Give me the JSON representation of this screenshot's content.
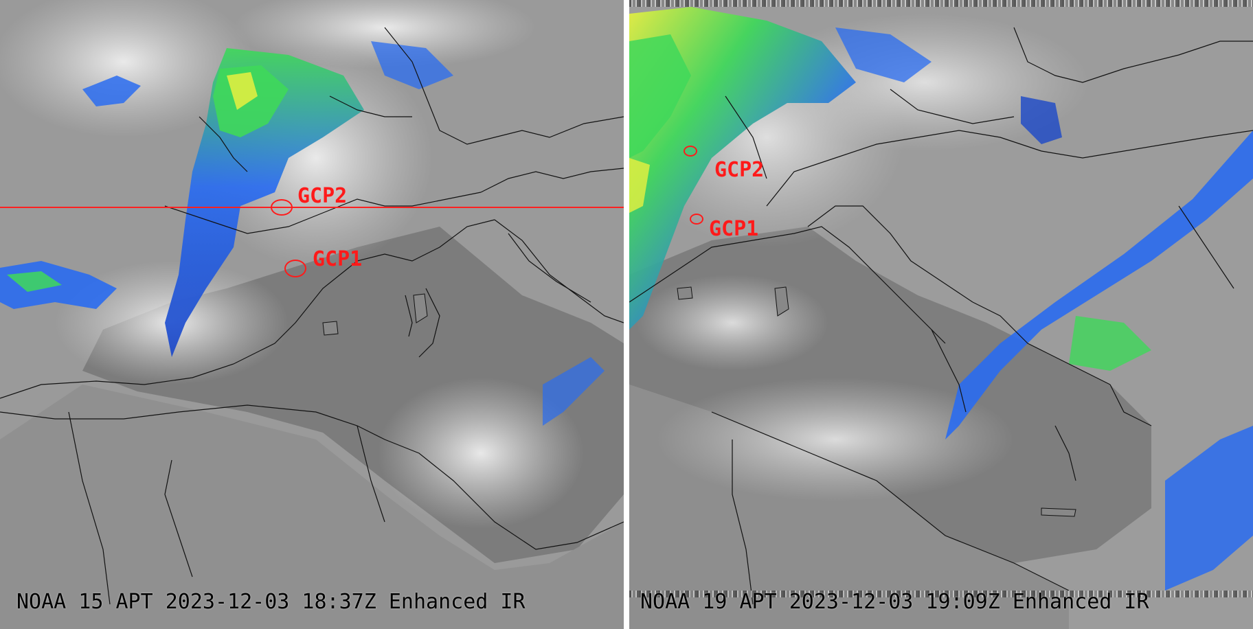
{
  "left_panel": {
    "caption": "NOAA 15 APT 2023-12-03 18:37Z Enhanced IR",
    "gcp1_label": "GCP1",
    "gcp2_label": "GCP2"
  },
  "right_panel": {
    "caption": "NOAA 19 APT 2023-12-03 19:09Z Enhanced IR",
    "gcp1_label": "GCP1",
    "gcp2_label": "GCP2"
  },
  "colors": {
    "annotation_red": "#ff1a1a",
    "ir_cold_blue": "#2a6cf0",
    "ir_colder_green": "#3fd85a",
    "ir_coldest_yellow": "#e8f040",
    "sea_gray": "#7a7a7a",
    "cloud_white": "#e6e6e6"
  }
}
